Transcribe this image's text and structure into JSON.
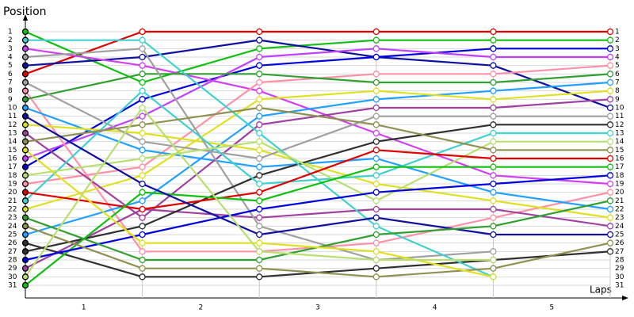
{
  "chart_data": {
    "type": "lapchart",
    "y_label": "Position",
    "x_label": "Laps",
    "x_labels": [
      "1",
      "2",
      "3",
      "4",
      "5"
    ],
    "ylim": [
      1,
      31
    ],
    "inverted": true,
    "yticks": [
      1,
      2,
      3,
      4,
      5,
      6,
      7,
      8,
      9,
      10,
      11,
      12,
      13,
      14,
      15,
      16,
      17,
      18,
      19,
      20,
      21,
      22,
      23,
      24,
      25,
      26,
      27,
      28,
      29,
      30,
      31
    ],
    "grid": true,
    "series": [
      {
        "color": "#e00000",
        "values": [
          6,
          1,
          1,
          1,
          1,
          1
        ]
      },
      {
        "color": "#10c010",
        "values": [
          1,
          7,
          3,
          2,
          2,
          2
        ]
      },
      {
        "color": "#1010a0",
        "values": [
          5,
          4,
          2,
          4,
          5,
          10
        ]
      },
      {
        "color": "#0000e0",
        "values": [
          17,
          9,
          5,
          4,
          3,
          3
        ]
      },
      {
        "color": "#c040ff",
        "values": [
          16,
          11,
          4,
          3,
          4,
          4
        ]
      },
      {
        "color": "#d040f0",
        "values": [
          3,
          5,
          8,
          13,
          18,
          19
        ]
      },
      {
        "color": "#ff90a8",
        "values": [
          19,
          17,
          7,
          6,
          6,
          5
        ]
      },
      {
        "color": "#ff90a8",
        "values": [
          8,
          27,
          27,
          26,
          23,
          20
        ]
      },
      {
        "color": "#30a030",
        "values": [
          9,
          6,
          6,
          7,
          7,
          6
        ]
      },
      {
        "color": "#20a0ff",
        "values": [
          25,
          21,
          11,
          9,
          8,
          7
        ]
      },
      {
        "color": "#20a0ff",
        "values": [
          10,
          15,
          17,
          16,
          20,
          22
        ]
      },
      {
        "color": "#e0e020",
        "values": [
          22,
          18,
          9,
          8,
          9,
          8
        ]
      },
      {
        "color": "#e0e020",
        "values": [
          12,
          13,
          15,
          19,
          21,
          23
        ]
      },
      {
        "color": "#a040a0",
        "values": [
          13,
          23,
          12,
          10,
          10,
          9
        ]
      },
      {
        "color": "#a040a0",
        "values": [
          29,
          22,
          23,
          22,
          22,
          24
        ]
      },
      {
        "color": "#a0a0a0",
        "values": [
          7,
          14,
          16,
          11,
          11,
          11
        ]
      },
      {
        "color": "#a0a0a0",
        "values": [
          4,
          3,
          24,
          28,
          27,
          null
        ]
      },
      {
        "color": "#303030",
        "values": [
          27,
          24,
          18,
          14,
          12,
          12
        ]
      },
      {
        "color": "#303030",
        "values": [
          26,
          30,
          30,
          29,
          28,
          27
        ]
      },
      {
        "color": "#40d0d0",
        "values": [
          2,
          2,
          13,
          24,
          30,
          null
        ]
      },
      {
        "color": "#40d0d0",
        "values": [
          21,
          8,
          19,
          18,
          13,
          13
        ]
      },
      {
        "color": "#b8e070",
        "values": [
          18,
          16,
          14,
          21,
          14,
          14
        ]
      },
      {
        "color": "#909050",
        "values": [
          14,
          12,
          10,
          12,
          15,
          15
        ]
      },
      {
        "color": "#e00000",
        "values": [
          20,
          22,
          20,
          15,
          16,
          16
        ]
      },
      {
        "color": "#10c010",
        "values": [
          31,
          20,
          21,
          17,
          17,
          17
        ]
      },
      {
        "color": "#0000e0",
        "values": [
          28,
          25,
          22,
          20,
          19,
          18
        ]
      },
      {
        "color": "#1010a0",
        "values": [
          11,
          19,
          25,
          23,
          25,
          25
        ]
      },
      {
        "color": "#30a030",
        "values": [
          23,
          28,
          28,
          25,
          24,
          21
        ]
      },
      {
        "color": "#909050",
        "values": [
          24,
          29,
          29,
          30,
          29,
          26
        ]
      },
      {
        "color": "#e0e020",
        "values": [
          15,
          26,
          26,
          27,
          30,
          null
        ]
      },
      {
        "color": "#b8e070",
        "values": [
          30,
          10,
          27,
          28,
          28,
          null
        ]
      }
    ]
  }
}
